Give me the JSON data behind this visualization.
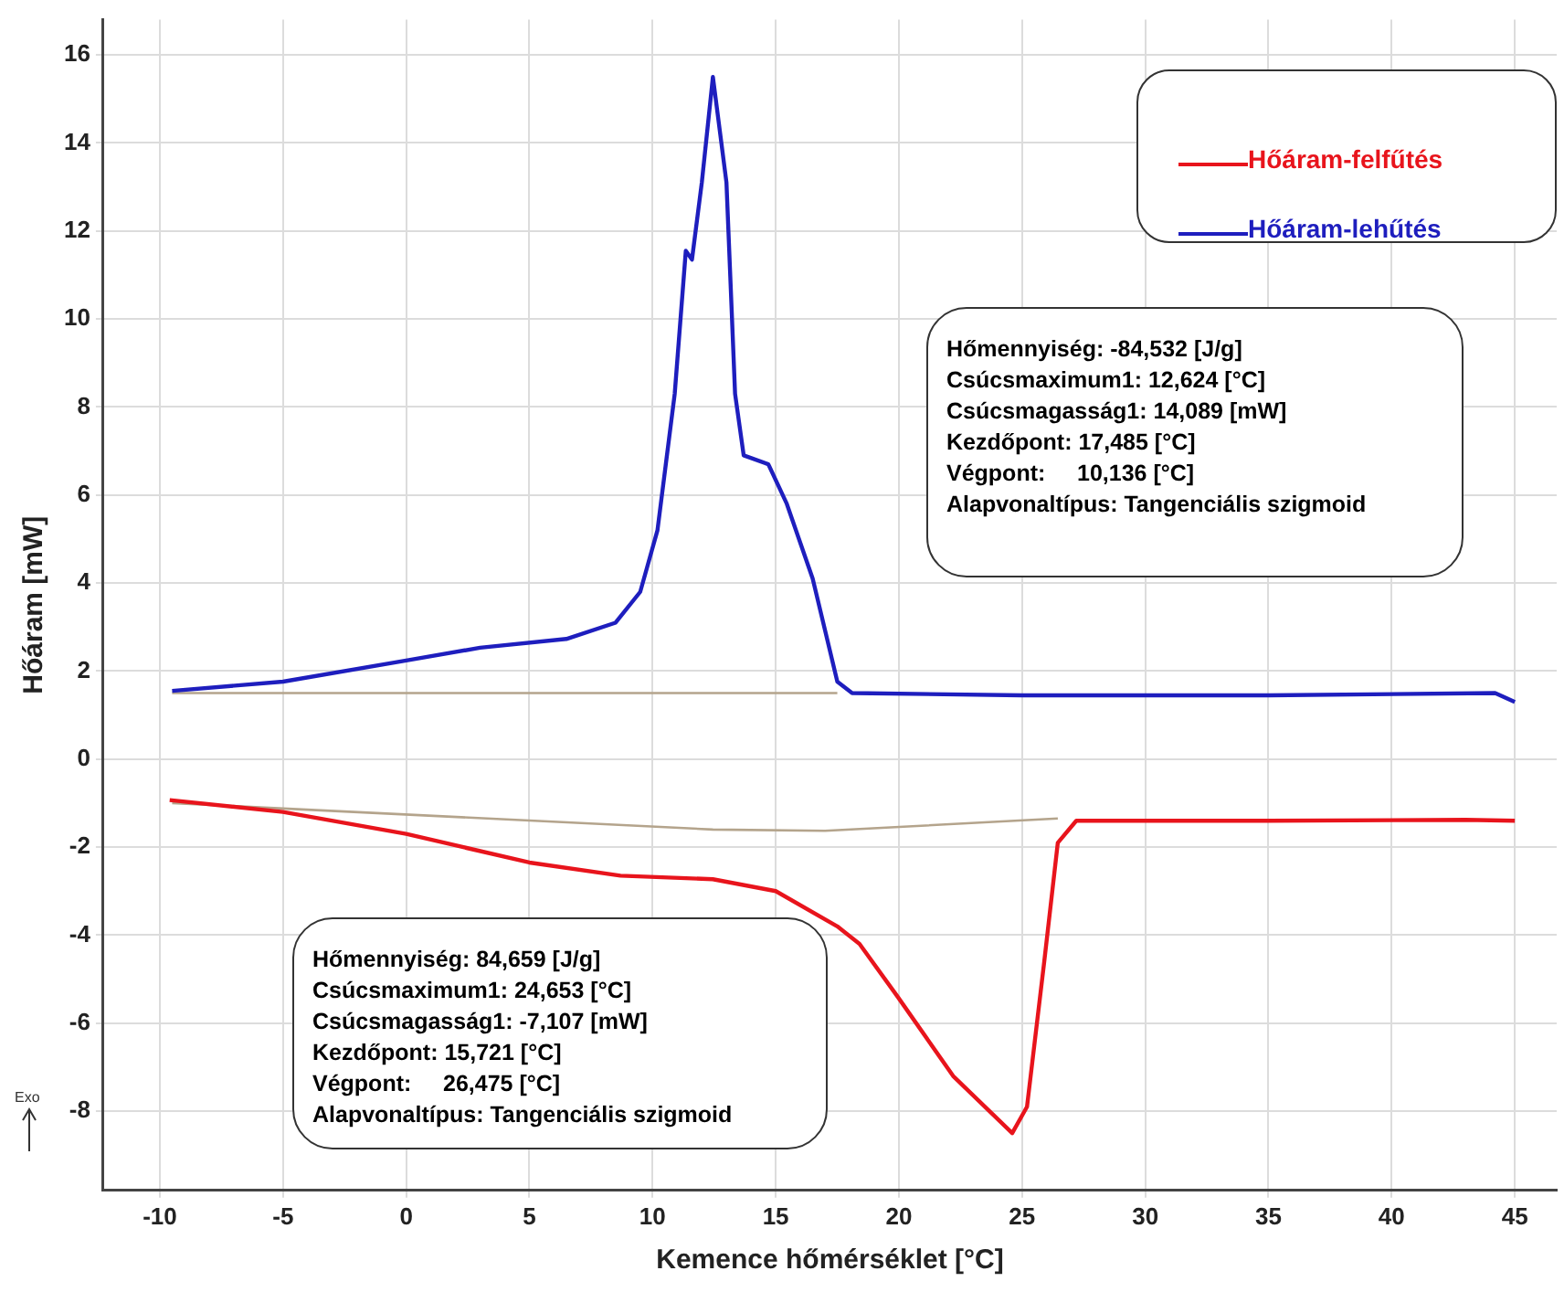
{
  "chart_data": {
    "type": "line",
    "xlabel": "Kemence hőmérséklet [°C]",
    "ylabel": "Hőáram [mW]",
    "xlim": [
      -12.3,
      46.7
    ],
    "xticks": [
      -10,
      -5,
      0,
      5,
      10,
      15,
      20,
      25,
      30,
      35,
      40,
      45
    ],
    "ylim": [
      -9.8,
      16.8
    ],
    "yticks": [
      -8,
      -6,
      -4,
      -2,
      0,
      2,
      4,
      6,
      8,
      10,
      12,
      14,
      16
    ],
    "grid": true,
    "legend": "top right",
    "marker": "none",
    "line_style": "solid",
    "series": [
      {
        "name": "Hőáram-felfűtés",
        "color": "#e8141c",
        "x": [
          -9.6,
          -5,
          0,
          5,
          8.7,
          12.45,
          15,
          17.5,
          18.4,
          19.95,
          22.2,
          24.6,
          25.2,
          25.9,
          26.45,
          27.2,
          35,
          43,
          45
        ],
        "values": [
          -0.93,
          -1.2,
          -1.7,
          -2.35,
          -2.65,
          -2.73,
          -3,
          -3.8,
          -4.2,
          -5.4,
          -7.2,
          -8.5,
          -7.9,
          -4.6,
          -1.9,
          -1.4,
          -1.4,
          -1.38,
          -1.4
        ]
      },
      {
        "name": "Hőáram-lehűtés",
        "color": "#1e1ebe",
        "x": [
          -9.5,
          -5,
          0,
          3,
          6.5,
          8.5,
          9.5,
          10.2,
          10.9,
          11.35,
          11.6,
          12,
          12.45,
          13,
          13.35,
          13.7,
          14.7,
          15.45,
          16.5,
          17.5,
          18.1,
          25,
          35,
          44.2,
          45
        ],
        "values": [
          1.55,
          1.76,
          2.24,
          2.53,
          2.73,
          3.1,
          3.8,
          5.2,
          8.3,
          11.55,
          11.35,
          13.1,
          15.5,
          13.1,
          8.3,
          6.9,
          6.7,
          5.8,
          4.1,
          1.76,
          1.5,
          1.45,
          1.45,
          1.5,
          1.3
        ]
      },
      {
        "color": "#b4a48c",
        "x": [
          -9.5,
          17.5
        ],
        "values": [
          1.5,
          1.5
        ]
      },
      {
        "color": "#b4a48c",
        "x": [
          -9.5,
          12.45,
          17,
          26.45
        ],
        "values": [
          -1,
          -1.6,
          -1.63,
          -1.35
        ]
      }
    ],
    "annotations": [
      "Hőmennyiség: -84,532 [J/g]\nCsúcsmaximum1: 12,624 [°C]\nCsúcsmagasság1: 14,089 [mW]\nKezdőpont: 17,485 [°C]\nVégpont:     10,136 [°C]\nAlapvonaltípus: Tangenciális szigmoid",
      "Hőmennyiség: 84,659 [J/g]\nCsúcsmaximum1: 24,653 [°C]\nCsúcsmagasság1: -7,107 [mW]\nKezdőpont: 15,721 [°C]\nVégpont:     26,475 [°C]\nAlapvonaltípus: Tangenciális szigmoid",
      "Exo"
    ]
  }
}
